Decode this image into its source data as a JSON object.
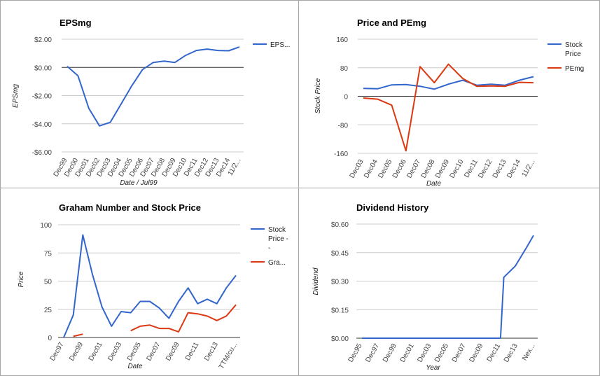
{
  "colors": {
    "blue": "#3366cc",
    "red": "#dc3912",
    "grid": "#cccccc",
    "zero": "#333333"
  },
  "chart_data": [
    {
      "type": "line",
      "title": "EPSmg",
      "xlabel": "Date / Jul99",
      "ylabel": "EPSmg",
      "categories": [
        "Dec99",
        "Dec00",
        "Dec01",
        "Dec02",
        "Dec03",
        "Dec04",
        "Dec05",
        "Dec06",
        "Dec07",
        "Dec08",
        "Dec09",
        "Dec10",
        "Dec11",
        "Dec12",
        "Dec13",
        "Dec14",
        "11/2..."
      ],
      "ylim": [
        -6,
        2
      ],
      "yticks": [
        2,
        0,
        -2,
        -4,
        -6
      ],
      "ytick_labels": [
        "$2.00",
        "$0.00",
        "-$2.00",
        "-$4.00",
        "-$6.00"
      ],
      "grid": true,
      "legend_position": "right",
      "series": [
        {
          "name": "EPS...",
          "color": "blue",
          "x": [
            0,
            1,
            2,
            3,
            4,
            5,
            6,
            7,
            8,
            9,
            10,
            11,
            12,
            13,
            14,
            15,
            16
          ],
          "values": [
            0.07,
            -0.6,
            -2.9,
            -4.15,
            -3.9,
            -2.6,
            -1.3,
            -0.15,
            0.35,
            0.45,
            0.35,
            0.85,
            1.2,
            1.3,
            1.2,
            1.18,
            1.45
          ]
        }
      ]
    },
    {
      "type": "line",
      "title": "Price and PEmg",
      "xlabel": "Date",
      "ylabel": "Stock Price",
      "categories": [
        "Dec03",
        "Dec04",
        "Dec05",
        "Dec06",
        "Dec07",
        "Dec08",
        "Dec09",
        "Dec10",
        "Dec11",
        "Dec12",
        "Dec13",
        "Dec14",
        "11/2..."
      ],
      "ylim": [
        -160,
        160
      ],
      "yticks": [
        160,
        80,
        0,
        -80,
        -160
      ],
      "ytick_labels": [
        "160",
        "80",
        "0",
        "-80",
        "-160"
      ],
      "grid": true,
      "legend_position": "right",
      "series": [
        {
          "name": "Stock Price",
          "color": "blue",
          "x": [
            0,
            1,
            2,
            3,
            4,
            5,
            6,
            7,
            8,
            9,
            10,
            11,
            12
          ],
          "values": [
            22,
            21,
            32,
            33,
            28,
            20,
            34,
            45,
            31,
            34,
            31,
            45,
            55
          ]
        },
        {
          "name": "PEmg",
          "color": "red",
          "x": [
            0,
            1,
            2,
            3,
            4,
            5,
            6,
            7,
            8,
            9,
            10,
            11,
            12
          ],
          "values": [
            -5,
            -8,
            -25,
            -153,
            83,
            38,
            90,
            50,
            28,
            29,
            28,
            39,
            38
          ]
        }
      ]
    },
    {
      "type": "line",
      "title": "Graham Number and Stock Price",
      "xlabel": "Date",
      "ylabel": "Price",
      "categories": [
        "Dec97",
        "Dec99",
        "Dec01",
        "Dec03",
        "Dec05",
        "Dec07",
        "Dec09",
        "Dec11",
        "Dec13",
        "TTM/cu..."
      ],
      "ylim": [
        0,
        100
      ],
      "yticks": [
        100,
        75,
        50,
        25,
        0
      ],
      "ytick_labels": [
        "100",
        "75",
        "50",
        "25",
        "0"
      ],
      "grid": true,
      "legend_position": "right",
      "series": [
        {
          "name": "Stock Price - -",
          "color": "blue",
          "x": [
            0,
            1,
            2,
            3,
            4,
            5,
            6,
            7,
            8,
            9,
            10,
            11,
            12,
            13,
            14,
            15,
            16,
            17,
            18
          ],
          "values": [
            0,
            20,
            91,
            56,
            27,
            10,
            23,
            22,
            32,
            32,
            26,
            17,
            32,
            44,
            30,
            34,
            30,
            44,
            55
          ]
        },
        {
          "name": "Gra...",
          "color": "red",
          "x": [
            1,
            2
          ],
          "values": [
            1,
            3
          ]
        },
        {
          "name": "Gra...",
          "color": "red",
          "legend": false,
          "x": [
            7,
            8,
            9,
            10,
            11,
            12,
            13,
            14,
            15,
            16,
            17,
            18
          ],
          "values": [
            6,
            10,
            11,
            8,
            8,
            5,
            22,
            21,
            19,
            15,
            19,
            29
          ]
        }
      ]
    },
    {
      "type": "line",
      "title": "Dividend History",
      "xlabel": "Year",
      "ylabel": "Dividend",
      "categories": [
        "Dec95",
        "Dec97",
        "Dec99",
        "Dec01",
        "Dec03",
        "Dec05",
        "Dec07",
        "Dec09",
        "Dec11",
        "Dec13",
        "Nex..."
      ],
      "ylim": [
        0,
        0.6
      ],
      "yticks": [
        0.6,
        0.45,
        0.3,
        0.15,
        0
      ],
      "ytick_labels": [
        "$0.60",
        "$0.45",
        "$0.30",
        "$0.15",
        "$0.00"
      ],
      "grid": true,
      "legend_position": "none",
      "series": [
        {
          "color": "blue",
          "x": [
            0,
            1,
            2,
            3,
            4,
            5,
            6,
            7,
            8,
            8.4,
            8.6,
            9.3,
            10,
            10.4
          ],
          "values": [
            0,
            0,
            0,
            0,
            0,
            0,
            0,
            0,
            0,
            0,
            0.32,
            0.38,
            0.48,
            0.54
          ]
        }
      ]
    }
  ]
}
